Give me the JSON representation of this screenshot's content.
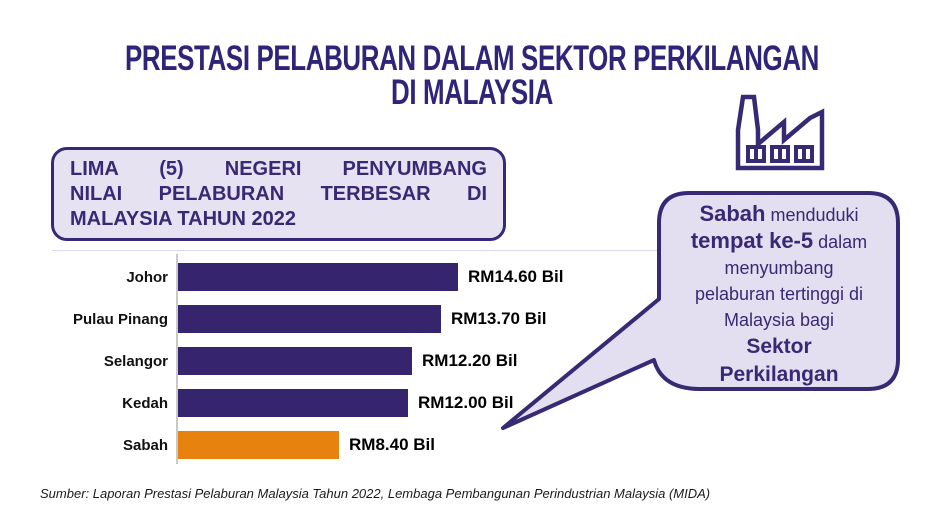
{
  "title": {
    "line1": "PRESTASI PELABURAN DALAM SEKTOR PERKILANGAN",
    "line2": "DI MALAYSIA"
  },
  "info_box": {
    "lines": [
      "LIMA (5) NEGERI PENYUMBANG",
      "NILAI PELABURAN TERBESAR DI",
      "MALAYSIA TAHUN 2022"
    ]
  },
  "callout": {
    "line1_bold": "Sabah",
    "line1_rest": " menduduki",
    "line2_bold": "tempat ke-5",
    "line2_rest": " dalam",
    "line3": "menyumbang",
    "line4": "pelaburan tertinggi di",
    "line5": "Malaysia bagi",
    "line6_bold": "Sektor",
    "line7_bold": "Perkilangan"
  },
  "icons": {
    "factory": "factory-outline-icon"
  },
  "theme": {
    "title_purple": "#2F2478",
    "bar_purple": "#37246F",
    "highlight_orange": "#E8820E",
    "box_fill": "#E7E2F1",
    "box_border": "#372A75",
    "axis_gray": "#C9C9C9"
  },
  "chart_data": {
    "type": "bar",
    "orientation": "horizontal",
    "title": "Lima (5) Negeri Penyumbang Nilai Pelaburan Terbesar di Malaysia Tahun 2022",
    "categories": [
      "Johor",
      "Pulau Pinang",
      "Selangor",
      "Kedah",
      "Sabah"
    ],
    "values": [
      14.6,
      13.7,
      12.2,
      12.0,
      8.4
    ],
    "value_labels": [
      "RM14.60 Bil",
      "RM13.70 Bil",
      "RM12.20 Bil",
      "RM12.00 Bil",
      "RM8.40 Bil"
    ],
    "bar_colors": [
      "#37246F",
      "#37246F",
      "#37246F",
      "#37246F",
      "#E8820E"
    ],
    "unit": "RM Bil",
    "xlim": [
      0,
      14.6
    ],
    "grid": false,
    "legend": false
  },
  "source": {
    "text": "Sumber: Laporan Prestasi Pelaburan Malaysia Tahun 2022, Lembaga Pembangunan Perindustrian Malaysia (MIDA)"
  }
}
